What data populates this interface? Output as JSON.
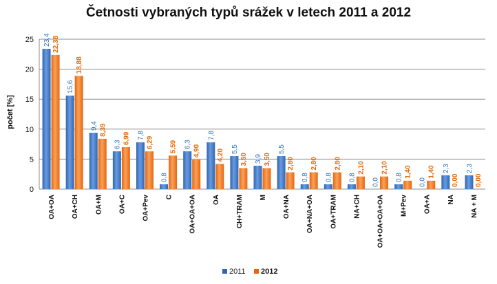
{
  "colors": {
    "s2011": "#2f66b2",
    "s2011_light": "#6a9be0",
    "s2012": "#e8650c",
    "s2012_light": "#f7a25c",
    "grid": "#8c8c8c"
  },
  "chart_data": {
    "type": "bar",
    "title": "Četnosti  vybraných typů srážek v letech 2011 a 2012",
    "ylabel": "počet [%]",
    "xlabel": "",
    "ylim": [
      0,
      25
    ],
    "yticks": [
      "0",
      "5",
      "10",
      "15",
      "20",
      "25"
    ],
    "grid": true,
    "legend_position": "bottom",
    "categories": [
      "OA+OA",
      "OA+CH",
      "OA+M",
      "OA+C",
      "OA+Pev",
      "C",
      "OA+OA+OA",
      "OA",
      "CH+TRAM",
      "M",
      "OA+NA",
      "OA+NA+OA",
      "OA+TRAM",
      "NA+CH",
      "OA+OA+OA+OA",
      "M+Pev",
      "OA+A",
      "NA",
      "NA + M"
    ],
    "series": [
      {
        "name": "2011",
        "values": [
          23.4,
          15.6,
          9.4,
          6.3,
          7.8,
          0.8,
          6.3,
          7.8,
          5.5,
          3.9,
          5.5,
          0.8,
          0.8,
          0.8,
          0.0,
          0.8,
          0.0,
          2.3,
          2.3
        ],
        "labels": [
          "23,4",
          "15,6",
          "9,4",
          "6,3",
          "7,8",
          "0,8",
          "6,3",
          "7,8",
          "5,5",
          "3,9",
          "5,5",
          "0,8",
          "0,8",
          "0,8",
          "0,0",
          "0,8",
          "0,0",
          "2,3",
          "2,3"
        ]
      },
      {
        "name": "2012",
        "values": [
          22.38,
          18.88,
          8.39,
          6.99,
          6.29,
          5.59,
          4.9,
          4.2,
          3.5,
          3.5,
          2.8,
          2.8,
          2.8,
          2.1,
          2.1,
          1.4,
          1.4,
          0.0,
          0.0
        ],
        "labels": [
          "22,38",
          "18,88",
          "8,39",
          "6,99",
          "6,29",
          "5,59",
          "4,90",
          "4,20",
          "3,50",
          "3,50",
          "2,80",
          "2,80",
          "2,80",
          "2,10",
          "2,10",
          "1,40",
          "1,40",
          "0,00",
          "0,00"
        ]
      }
    ]
  }
}
